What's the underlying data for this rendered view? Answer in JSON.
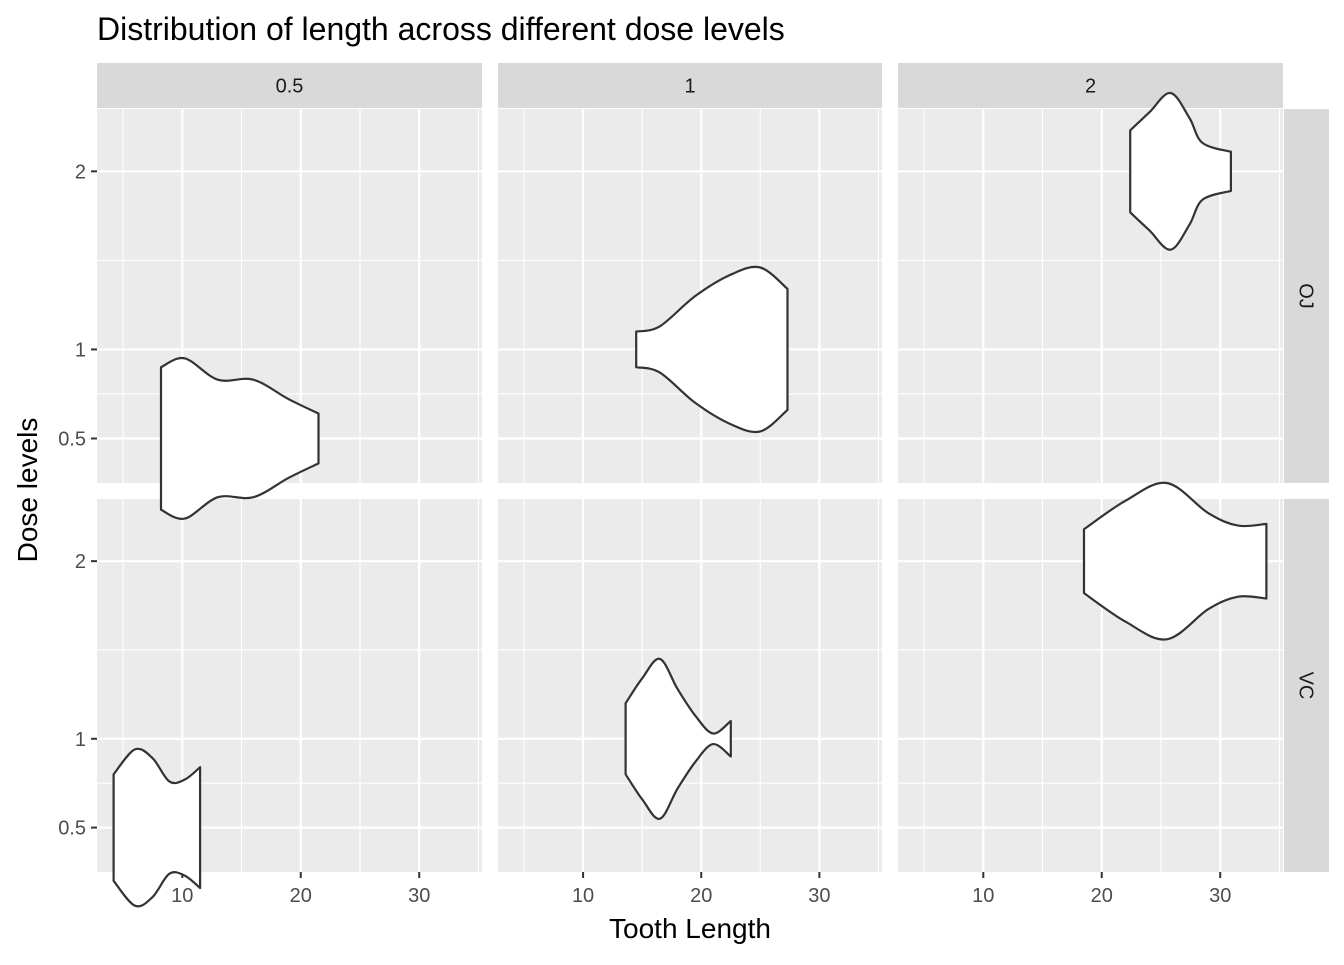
{
  "chart_data": {
    "type": "violin",
    "title": "Distribution of length across different dose levels",
    "xlabel": "Tooth Length",
    "ylabel": "Dose levels",
    "col_facet_labels": [
      "0.5",
      "1",
      "2"
    ],
    "row_facet_labels": [
      "OJ",
      "VC"
    ],
    "xlim": [
      2.8,
      35.3
    ],
    "ylim": [
      0.25,
      2.35
    ],
    "x_ticks": [
      10,
      20,
      30
    ],
    "x_tick_labels": [
      "10",
      "20",
      "30"
    ],
    "y_ticks": [
      0.5,
      1,
      2
    ],
    "y_tick_labels": [
      "0.5",
      "1",
      "2"
    ],
    "grid": true,
    "colors": {
      "panel_bg": "#EBEBEB",
      "grid_line": "#FFFFFF",
      "strip_bg": "#D9D9D9",
      "violin_fill": "#FFFFFF",
      "violin_outline": "#333333"
    },
    "violins": [
      {
        "supp": "OJ",
        "dose": "0.5",
        "y": 0.5,
        "min": 8.2,
        "max": 21.5,
        "profile": [
          [
            8.2,
            0.4
          ],
          [
            10.2,
            0.45
          ],
          [
            13,
            0.33
          ],
          [
            16,
            0.33
          ],
          [
            19,
            0.22
          ],
          [
            21.5,
            0.14
          ]
        ]
      },
      {
        "supp": "OJ",
        "dose": "1",
        "y": 1,
        "min": 14.5,
        "max": 27.3,
        "profile": [
          [
            14.5,
            0.1
          ],
          [
            16.5,
            0.13
          ],
          [
            19.5,
            0.3
          ],
          [
            22.5,
            0.42
          ],
          [
            25,
            0.46
          ],
          [
            27.3,
            0.34
          ]
        ]
      },
      {
        "supp": "OJ",
        "dose": "2",
        "y": 2,
        "min": 22.4,
        "max": 30.9,
        "profile": [
          [
            22.4,
            0.23
          ],
          [
            24,
            0.33
          ],
          [
            25.8,
            0.44
          ],
          [
            27.4,
            0.3
          ],
          [
            28.5,
            0.16
          ],
          [
            30.9,
            0.11
          ]
        ]
      },
      {
        "supp": "VC",
        "dose": "0.5",
        "y": 0.5,
        "min": 4.2,
        "max": 11.5,
        "profile": [
          [
            4.2,
            0.3
          ],
          [
            6,
            0.44
          ],
          [
            7.5,
            0.39
          ],
          [
            8.9,
            0.26
          ],
          [
            10.2,
            0.27
          ],
          [
            11.5,
            0.34
          ]
        ]
      },
      {
        "supp": "VC",
        "dose": "1",
        "y": 1,
        "min": 13.6,
        "max": 22.5,
        "profile": [
          [
            13.6,
            0.2
          ],
          [
            15,
            0.34
          ],
          [
            16.5,
            0.45
          ],
          [
            18,
            0.28
          ],
          [
            19.5,
            0.13
          ],
          [
            21,
            0.03
          ],
          [
            22.5,
            0.1
          ]
        ]
      },
      {
        "supp": "VC",
        "dose": "2",
        "y": 2,
        "min": 18.5,
        "max": 33.9,
        "profile": [
          [
            18.5,
            0.18
          ],
          [
            22,
            0.34
          ],
          [
            25.5,
            0.44
          ],
          [
            29,
            0.27
          ],
          [
            31.5,
            0.2
          ],
          [
            33.9,
            0.21
          ]
        ]
      }
    ]
  }
}
